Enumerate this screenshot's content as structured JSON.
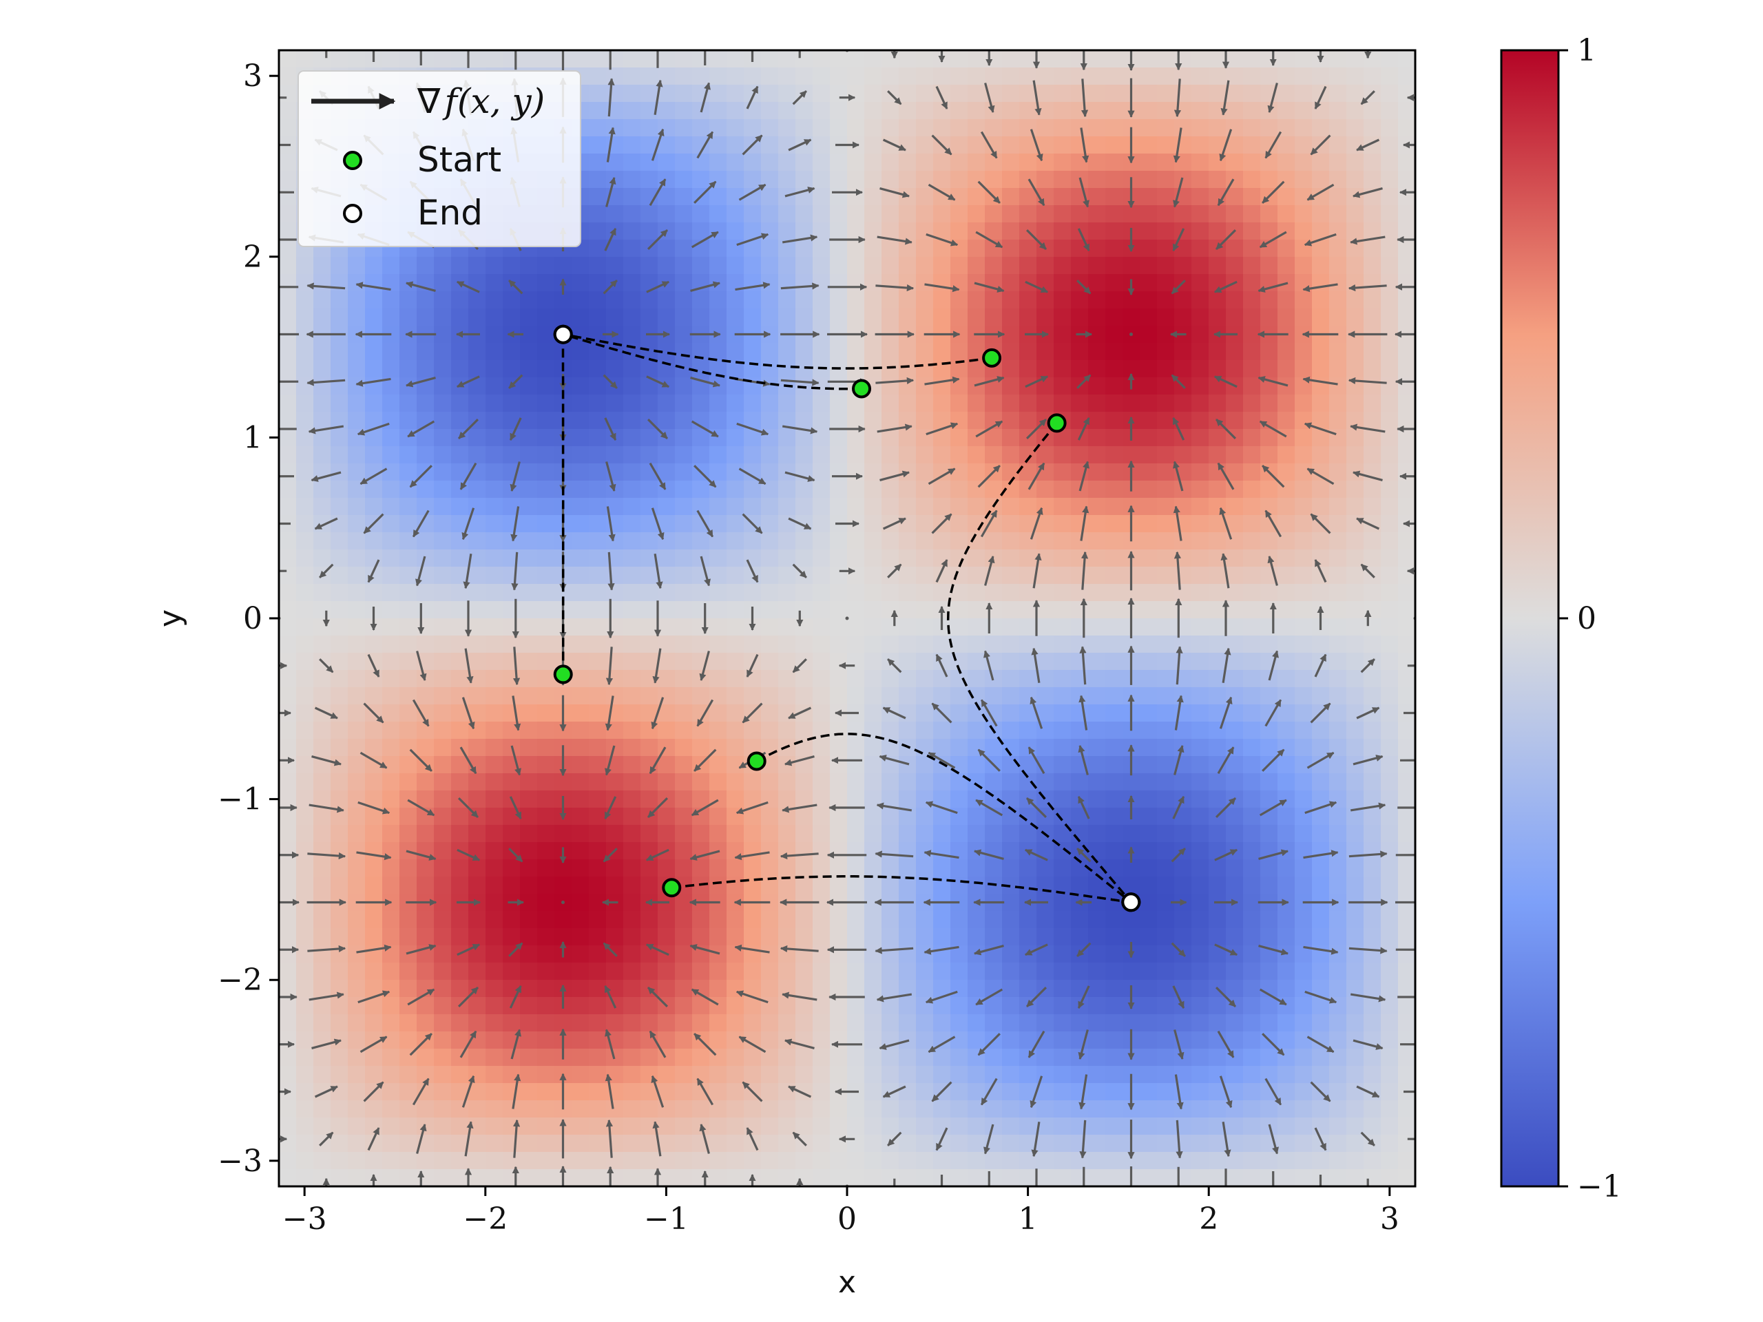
{
  "chart_data": {
    "type": "heatmap",
    "function": "sin(x)*sin(y)",
    "xlabel": "x",
    "ylabel": "y",
    "xlim": [
      -3.14159,
      3.14159
    ],
    "ylim": [
      -3.14159,
      3.14159
    ],
    "x_ticks": [
      -3,
      -2,
      -1,
      0,
      1,
      2,
      3
    ],
    "y_ticks": [
      -3,
      -2,
      -1,
      0,
      1,
      2,
      3
    ],
    "x_tick_labels": [
      "−3",
      "−2",
      "−1",
      "0",
      "1",
      "2",
      "3"
    ],
    "y_tick_labels": [
      "−3",
      "−2",
      "−1",
      "0",
      "1",
      "2",
      "3"
    ],
    "colormap": "coolwarm",
    "colorbar": {
      "min": -1,
      "max": 1,
      "ticks": [
        -1,
        0,
        1
      ],
      "tick_labels": [
        "−1",
        "0",
        "1"
      ]
    },
    "colors": {
      "low": "#3b4cc0",
      "mid": "#dddddd",
      "high": "#b40426",
      "arrow": "#5a5a5a",
      "start_marker": "#22dd22",
      "end_marker": "#ffffff",
      "path": "#000000"
    },
    "quiver": {
      "label": "∇f(x, y)",
      "grid_count": 25
    },
    "legend": {
      "position": "upper-left",
      "entries": [
        {
          "label_prefix": "∇",
          "label_math": "f(x, y)",
          "marker": "arrow"
        },
        {
          "label": "Start",
          "marker": "start"
        },
        {
          "label": "End",
          "marker": "end"
        }
      ]
    },
    "trajectories": [
      {
        "start": [
          0.08,
          1.27
        ],
        "end": [
          -1.57,
          1.57
        ]
      },
      {
        "start": [
          0.8,
          1.44
        ],
        "end": [
          -1.57,
          1.57
        ]
      },
      {
        "start": [
          -1.57,
          -0.31
        ],
        "end": [
          -1.57,
          1.57
        ]
      },
      {
        "start": [
          1.16,
          1.08
        ],
        "end": [
          1.57,
          -1.57
        ]
      },
      {
        "start": [
          -0.5,
          -0.79
        ],
        "end": [
          1.57,
          -1.57
        ]
      },
      {
        "start": [
          -0.97,
          -1.49
        ],
        "end": [
          1.57,
          -1.57
        ]
      }
    ]
  }
}
